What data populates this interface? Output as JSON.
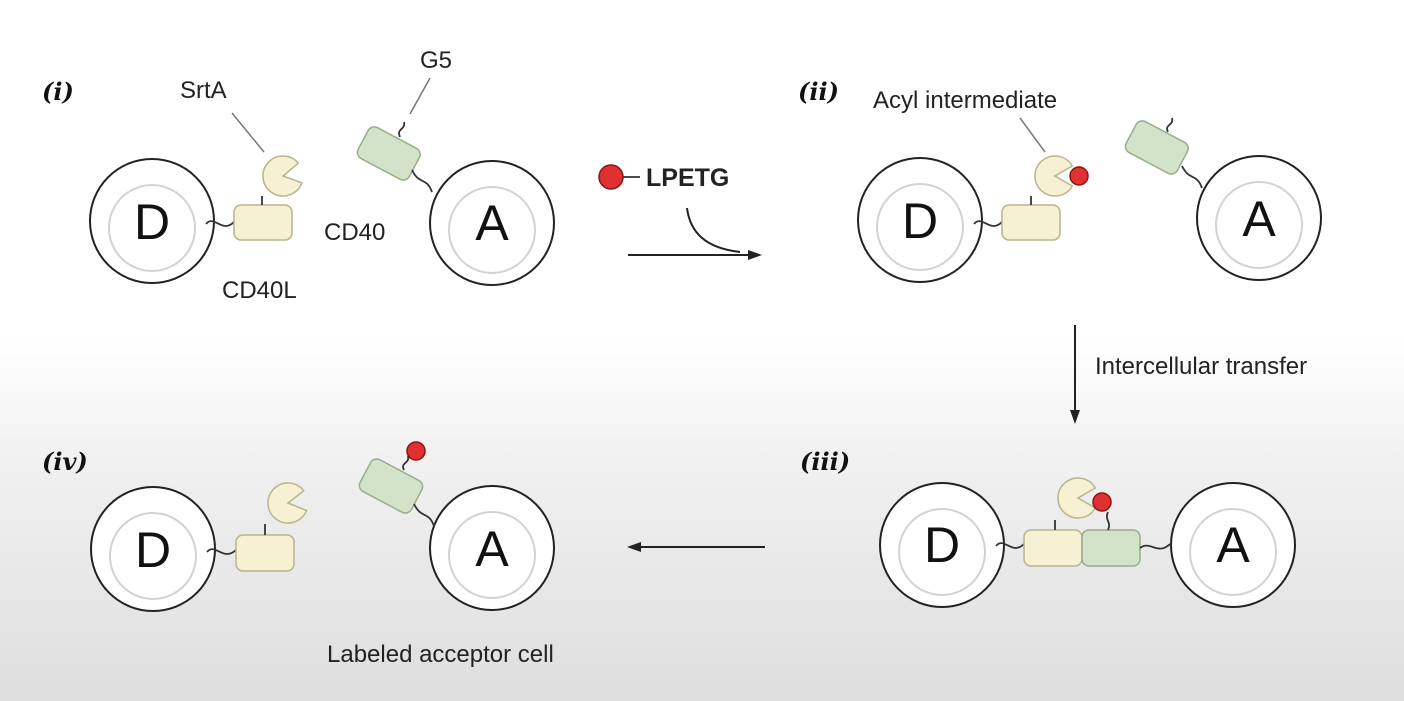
{
  "panels": {
    "i": {
      "step_label": "(i)",
      "donor_letter": "D",
      "acceptor_letter": "A",
      "srta_label": "SrtA",
      "g5_label": "G5",
      "cd40_label": "CD40",
      "cd40l_label": "CD40L"
    },
    "ii": {
      "step_label": "(ii)",
      "donor_letter": "D",
      "acceptor_letter": "A",
      "acyl_label": "Acyl intermediate"
    },
    "iii": {
      "step_label": "(iii)",
      "donor_letter": "D",
      "acceptor_letter": "A"
    },
    "iv": {
      "step_label": "(iv)",
      "donor_letter": "D",
      "acceptor_letter": "A",
      "caption": "Labeled acceptor cell"
    }
  },
  "reagent": {
    "label": "LPETG"
  },
  "transfer": {
    "label": "Intercellular transfer"
  },
  "colors": {
    "cd40l": "#f6f1d2",
    "cd40": "#d3e3c9",
    "label_ball": "#e03030"
  }
}
